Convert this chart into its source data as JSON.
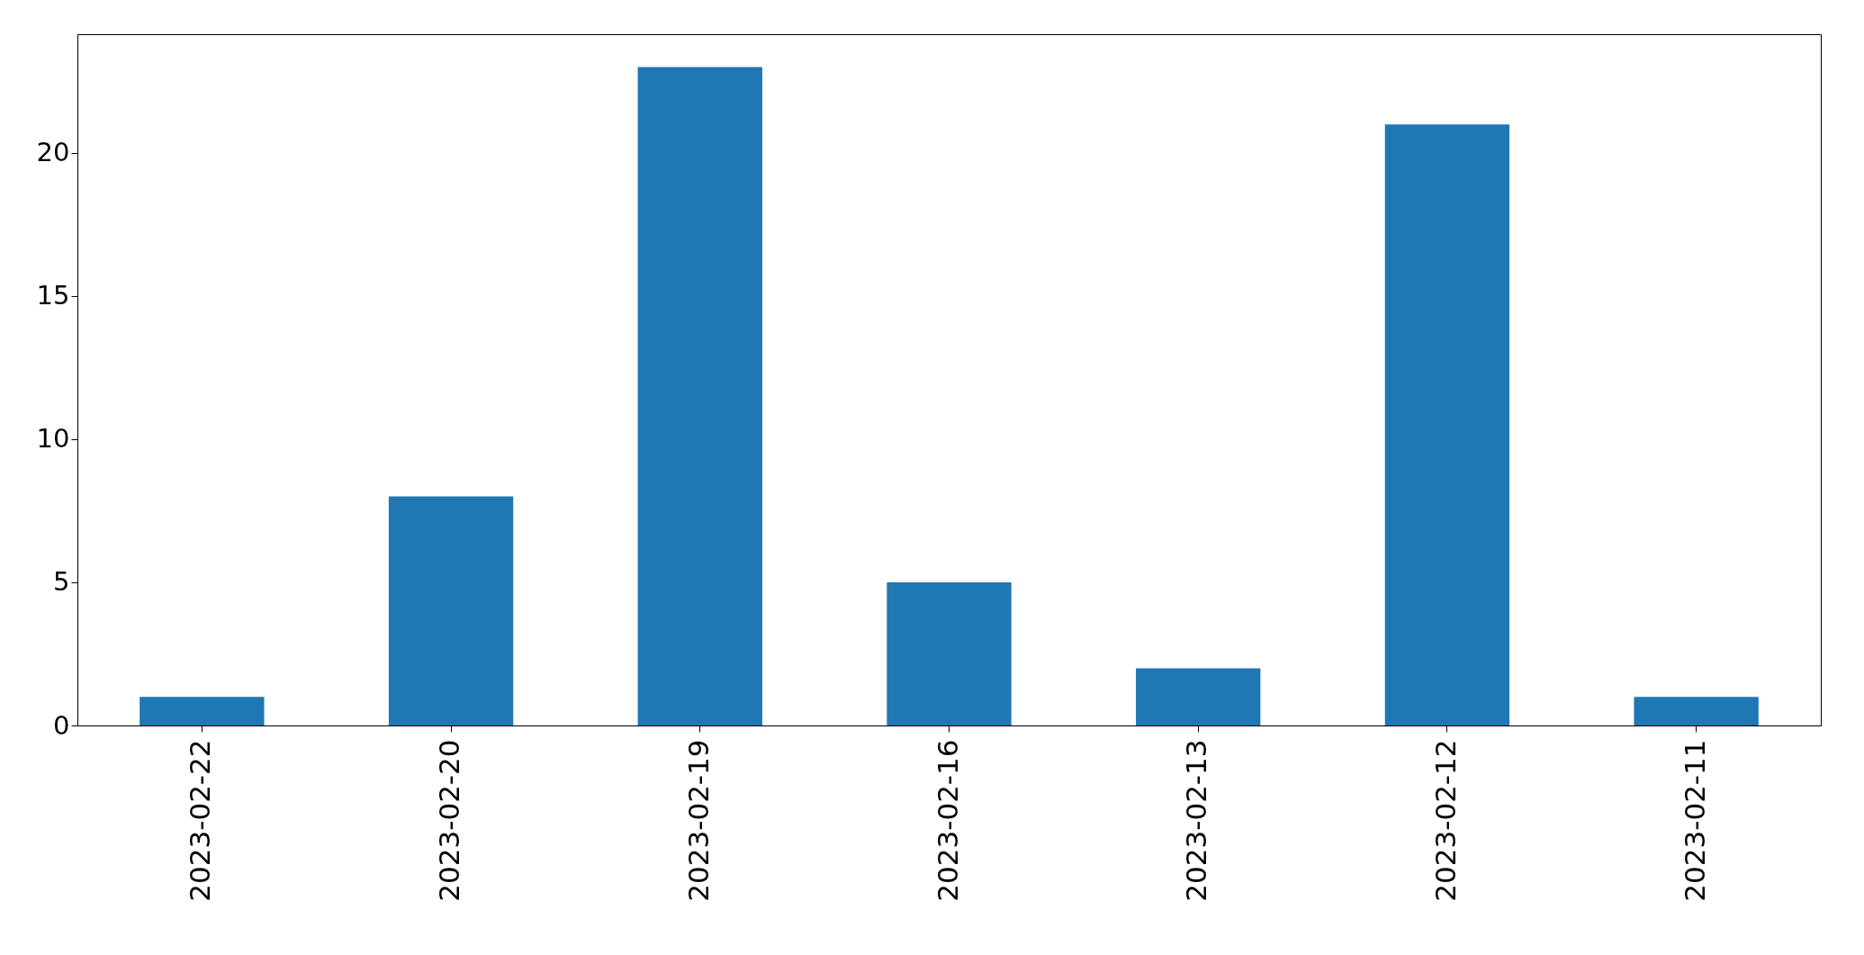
{
  "chart_data": {
    "type": "bar",
    "categories": [
      "2023-02-22",
      "2023-02-20",
      "2023-02-19",
      "2023-02-16",
      "2023-02-13",
      "2023-02-12",
      "2023-02-11"
    ],
    "values": [
      1,
      8,
      23,
      5,
      2,
      21,
      1
    ],
    "color": "#1f77b4",
    "ylim": [
      0,
      24.15
    ],
    "yticks": [
      0,
      5,
      10,
      15,
      20
    ],
    "grid": false
  }
}
